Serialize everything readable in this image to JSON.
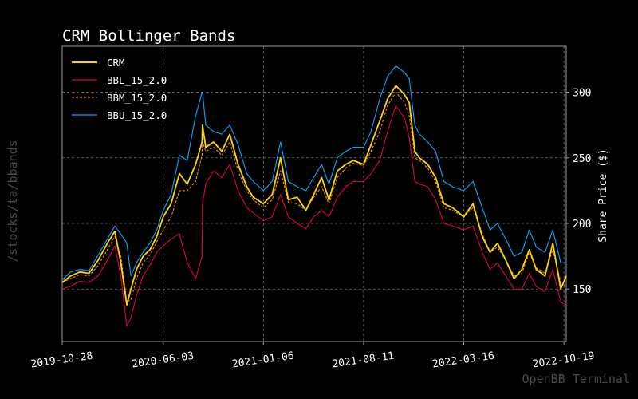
{
  "chart_data": {
    "type": "line",
    "title": "CRM Bollinger Bands",
    "ylabel": "Share Price ($)",
    "xlabel": "",
    "side_label": "/stocks/ta/bbands",
    "watermark": "OpenBB Terminal",
    "xlim": [
      "2019-10-28",
      "2022-10-24"
    ],
    "ylim": [
      110,
      335
    ],
    "grid": true,
    "legend_position": "top-left",
    "x_ticks": [
      "2019-10-28",
      "2020-06-03",
      "2021-01-06",
      "2021-08-11",
      "2022-03-16",
      "2022-10-19"
    ],
    "y_ticks": [
      150,
      200,
      250,
      300
    ],
    "colors": {
      "background": "#000000",
      "CRM": "#ffd500",
      "BBL_15_2.0": "#e4003a",
      "BBM_15_2.0": "#ff8c00",
      "BBU_15_2.0": "#00aaff",
      "grid": "#707070",
      "axis": "#9a9a9a"
    },
    "series": [
      {
        "name": "CRM",
        "style": "solid",
        "x": [
          "2019-10-28",
          "2019-11-15",
          "2019-12-05",
          "2019-12-25",
          "2020-01-14",
          "2020-02-03",
          "2020-02-19",
          "2020-03-03",
          "2020-03-16",
          "2020-03-25",
          "2020-04-06",
          "2020-04-20",
          "2020-05-05",
          "2020-05-20",
          "2020-06-03",
          "2020-06-20",
          "2020-07-08",
          "2020-07-25",
          "2020-08-12",
          "2020-08-26",
          "2020-08-27",
          "2020-09-03",
          "2020-09-20",
          "2020-10-08",
          "2020-10-25",
          "2020-11-12",
          "2020-12-01",
          "2020-12-15",
          "2021-01-06",
          "2021-01-25",
          "2021-02-12",
          "2021-03-01",
          "2021-03-20",
          "2021-04-08",
          "2021-04-25",
          "2021-05-12",
          "2021-05-28",
          "2021-06-15",
          "2021-07-03",
          "2021-07-20",
          "2021-08-11",
          "2021-08-27",
          "2021-09-15",
          "2021-10-02",
          "2021-10-20",
          "2021-11-08",
          "2021-11-18",
          "2021-11-30",
          "2021-12-10",
          "2021-12-28",
          "2022-01-14",
          "2022-02-01",
          "2022-02-20",
          "2022-03-16",
          "2022-04-05",
          "2022-04-25",
          "2022-05-12",
          "2022-05-28",
          "2022-06-15",
          "2022-07-03",
          "2022-07-20",
          "2022-08-05",
          "2022-08-20",
          "2022-09-08",
          "2022-09-25",
          "2022-10-12",
          "2022-10-24"
        ],
        "y": [
          155,
          160,
          163,
          162,
          172,
          185,
          194,
          170,
          138,
          150,
          165,
          175,
          180,
          190,
          205,
          215,
          238,
          230,
          245,
          262,
          275,
          258,
          262,
          255,
          268,
          245,
          228,
          220,
          215,
          222,
          250,
          218,
          220,
          210,
          222,
          235,
          218,
          240,
          245,
          248,
          245,
          260,
          278,
          295,
          305,
          298,
          292,
          255,
          250,
          245,
          235,
          215,
          212,
          205,
          215,
          190,
          178,
          185,
          172,
          158,
          165,
          180,
          165,
          160,
          185,
          150,
          160
        ]
      },
      {
        "name": "BBL_15_2.0",
        "style": "solid",
        "x": [
          "2019-10-28",
          "2019-11-15",
          "2019-12-05",
          "2019-12-25",
          "2020-01-14",
          "2020-02-03",
          "2020-02-19",
          "2020-03-03",
          "2020-03-16",
          "2020-03-25",
          "2020-04-06",
          "2020-04-20",
          "2020-05-05",
          "2020-05-20",
          "2020-06-03",
          "2020-06-20",
          "2020-07-08",
          "2020-07-25",
          "2020-08-12",
          "2020-08-26",
          "2020-08-27",
          "2020-09-03",
          "2020-09-20",
          "2020-10-08",
          "2020-10-25",
          "2020-11-12",
          "2020-12-01",
          "2020-12-15",
          "2021-01-06",
          "2021-01-25",
          "2021-02-12",
          "2021-03-01",
          "2021-03-20",
          "2021-04-08",
          "2021-04-25",
          "2021-05-12",
          "2021-05-28",
          "2021-06-15",
          "2021-07-03",
          "2021-07-20",
          "2021-08-11",
          "2021-08-27",
          "2021-09-15",
          "2021-10-02",
          "2021-10-20",
          "2021-11-08",
          "2021-11-18",
          "2021-11-30",
          "2021-12-10",
          "2021-12-28",
          "2022-01-14",
          "2022-02-01",
          "2022-02-20",
          "2022-03-16",
          "2022-04-05",
          "2022-04-25",
          "2022-05-12",
          "2022-05-28",
          "2022-06-15",
          "2022-07-03",
          "2022-07-20",
          "2022-08-05",
          "2022-08-20",
          "2022-09-08",
          "2022-09-25",
          "2022-10-12",
          "2022-10-24"
        ],
        "y": [
          150,
          152,
          156,
          155,
          160,
          172,
          183,
          160,
          122,
          128,
          145,
          160,
          168,
          178,
          183,
          188,
          192,
          170,
          158,
          175,
          215,
          230,
          240,
          235,
          245,
          225,
          212,
          208,
          202,
          205,
          222,
          205,
          200,
          196,
          205,
          210,
          205,
          220,
          228,
          232,
          232,
          238,
          248,
          270,
          290,
          280,
          265,
          232,
          230,
          228,
          218,
          200,
          198,
          195,
          198,
          178,
          165,
          170,
          160,
          150,
          150,
          162,
          152,
          148,
          165,
          140,
          138
        ]
      },
      {
        "name": "BBM_15_2.0",
        "style": "dashed",
        "x": [
          "2019-10-28",
          "2019-11-15",
          "2019-12-05",
          "2019-12-25",
          "2020-01-14",
          "2020-02-03",
          "2020-02-19",
          "2020-03-03",
          "2020-03-16",
          "2020-03-25",
          "2020-04-06",
          "2020-04-20",
          "2020-05-05",
          "2020-05-20",
          "2020-06-03",
          "2020-06-20",
          "2020-07-08",
          "2020-07-25",
          "2020-08-12",
          "2020-08-26",
          "2020-08-27",
          "2020-09-03",
          "2020-09-20",
          "2020-10-08",
          "2020-10-25",
          "2020-11-12",
          "2020-12-01",
          "2020-12-15",
          "2021-01-06",
          "2021-01-25",
          "2021-02-12",
          "2021-03-01",
          "2021-03-20",
          "2021-04-08",
          "2021-04-25",
          "2021-05-12",
          "2021-05-28",
          "2021-06-15",
          "2021-07-03",
          "2021-07-20",
          "2021-08-11",
          "2021-08-27",
          "2021-09-15",
          "2021-10-02",
          "2021-10-20",
          "2021-11-08",
          "2021-11-18",
          "2021-11-30",
          "2021-12-10",
          "2021-12-28",
          "2022-01-14",
          "2022-02-01",
          "2022-02-20",
          "2022-03-16",
          "2022-04-05",
          "2022-04-25",
          "2022-05-12",
          "2022-05-28",
          "2022-06-15",
          "2022-07-03",
          "2022-07-20",
          "2022-08-05",
          "2022-08-20",
          "2022-09-08",
          "2022-09-25",
          "2022-10-12",
          "2022-10-24"
        ],
        "y": [
          155,
          158,
          161,
          160,
          168,
          180,
          190,
          175,
          140,
          142,
          158,
          170,
          176,
          186,
          195,
          205,
          225,
          225,
          232,
          252,
          262,
          255,
          258,
          252,
          262,
          240,
          225,
          218,
          212,
          218,
          240,
          216,
          215,
          210,
          220,
          228,
          215,
          235,
          242,
          246,
          244,
          255,
          270,
          290,
          300,
          292,
          282,
          250,
          248,
          242,
          232,
          212,
          210,
          205,
          212,
          192,
          178,
          182,
          172,
          160,
          162,
          178,
          166,
          162,
          180,
          155,
          152
        ]
      },
      {
        "name": "BBU_15_2.0",
        "style": "solid",
        "x": [
          "2019-10-28",
          "2019-11-15",
          "2019-12-05",
          "2019-12-25",
          "2020-01-14",
          "2020-02-03",
          "2020-02-19",
          "2020-03-03",
          "2020-03-16",
          "2020-03-25",
          "2020-04-06",
          "2020-04-20",
          "2020-05-05",
          "2020-05-20",
          "2020-06-03",
          "2020-06-20",
          "2020-07-08",
          "2020-07-25",
          "2020-08-12",
          "2020-08-26",
          "2020-08-27",
          "2020-09-03",
          "2020-09-20",
          "2020-10-08",
          "2020-10-25",
          "2020-11-12",
          "2020-12-01",
          "2020-12-15",
          "2021-01-06",
          "2021-01-25",
          "2021-02-12",
          "2021-03-01",
          "2021-03-20",
          "2021-04-08",
          "2021-04-25",
          "2021-05-12",
          "2021-05-28",
          "2021-06-15",
          "2021-07-03",
          "2021-07-20",
          "2021-08-11",
          "2021-08-27",
          "2021-09-15",
          "2021-10-02",
          "2021-10-20",
          "2021-11-08",
          "2021-11-18",
          "2021-11-30",
          "2021-12-10",
          "2021-12-28",
          "2022-01-14",
          "2022-02-01",
          "2022-02-20",
          "2022-03-16",
          "2022-04-05",
          "2022-04-25",
          "2022-05-12",
          "2022-05-28",
          "2022-06-15",
          "2022-07-03",
          "2022-07-20",
          "2022-08-05",
          "2022-08-20",
          "2022-09-08",
          "2022-09-25",
          "2022-10-12",
          "2022-10-24"
        ],
        "y": [
          157,
          163,
          165,
          164,
          176,
          188,
          198,
          192,
          185,
          160,
          170,
          178,
          185,
          195,
          210,
          222,
          252,
          248,
          282,
          300,
          300,
          275,
          270,
          268,
          275,
          260,
          238,
          232,
          225,
          232,
          262,
          232,
          228,
          225,
          235,
          245,
          230,
          250,
          255,
          258,
          258,
          270,
          295,
          312,
          320,
          315,
          310,
          275,
          268,
          262,
          255,
          232,
          228,
          225,
          232,
          212,
          195,
          200,
          188,
          175,
          178,
          195,
          182,
          178,
          195,
          170,
          170
        ]
      }
    ]
  }
}
